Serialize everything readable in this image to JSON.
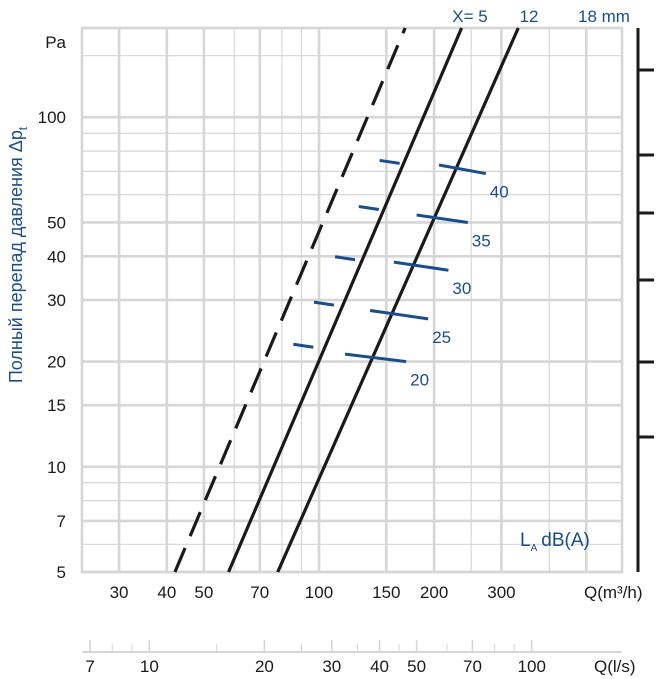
{
  "chart_data": {
    "type": "line",
    "x_scale": "log",
    "y_scale": "log",
    "grid": true,
    "ylabel": "Полный перепад давления Δp",
    "ylabel_subscript": "t",
    "yunit": "Pa",
    "xlabel_main": "Q(m³/h)",
    "xlabel_secondary": "Q(l/s)",
    "x_ticks_main": [
      "30",
      "40",
      "50",
      "70",
      "100",
      "150",
      "200",
      "300"
    ],
    "x_ticks_secondary": [
      "7",
      "10",
      "20",
      "30",
      "40",
      "50",
      "70",
      "100"
    ],
    "y_ticks": [
      "5",
      "7",
      "10",
      "15",
      "20",
      "30",
      "40",
      "50",
      "100"
    ],
    "xlim_m3h": [
      24,
      620
    ],
    "ylim_pa": [
      5,
      180
    ],
    "series_labels": {
      "x5": "X= 5",
      "x12": "12",
      "x18": "18 mm"
    },
    "series": [
      {
        "name": "X= 5",
        "style": "dashed",
        "points": [
          [
            42,
            5
          ],
          [
            168,
            180
          ]
        ]
      },
      {
        "name": "12",
        "style": "solid",
        "points": [
          [
            58,
            5
          ],
          [
            236,
            180
          ]
        ]
      },
      {
        "name": "18 mm",
        "style": "solid",
        "points": [
          [
            78,
            5
          ],
          [
            332,
            180
          ]
        ]
      }
    ],
    "noise_title": "L",
    "noise_sub": "A",
    "noise_unit": "dB(A)",
    "noise_levels": [
      {
        "label": "20",
        "q": [
          117,
          169
        ],
        "dp": [
          21,
          20
        ]
      },
      {
        "label": "25",
        "q": [
          136,
          193
        ],
        "dp": [
          28,
          26.5
        ]
      },
      {
        "label": "30",
        "q": [
          157,
          218
        ],
        "dp": [
          38.5,
          36.5
        ]
      },
      {
        "label": "35",
        "q": [
          180,
          245
        ],
        "dp": [
          52.5,
          50
        ]
      },
      {
        "label": "40",
        "q": [
          206,
          273
        ],
        "dp": [
          73,
          69
        ]
      }
    ],
    "x5_marks": [
      {
        "q": 91,
        "dp": 22.2
      },
      {
        "q": 103,
        "dp": 29.3
      },
      {
        "q": 117,
        "dp": 39.5
      },
      {
        "q": 135,
        "dp": 55
      },
      {
        "q": 153,
        "dp": 74.5
      }
    ],
    "colors": {
      "grid": "#d6d6d6",
      "line": "#1a1a1a",
      "accent": "#1a4d8c"
    }
  }
}
